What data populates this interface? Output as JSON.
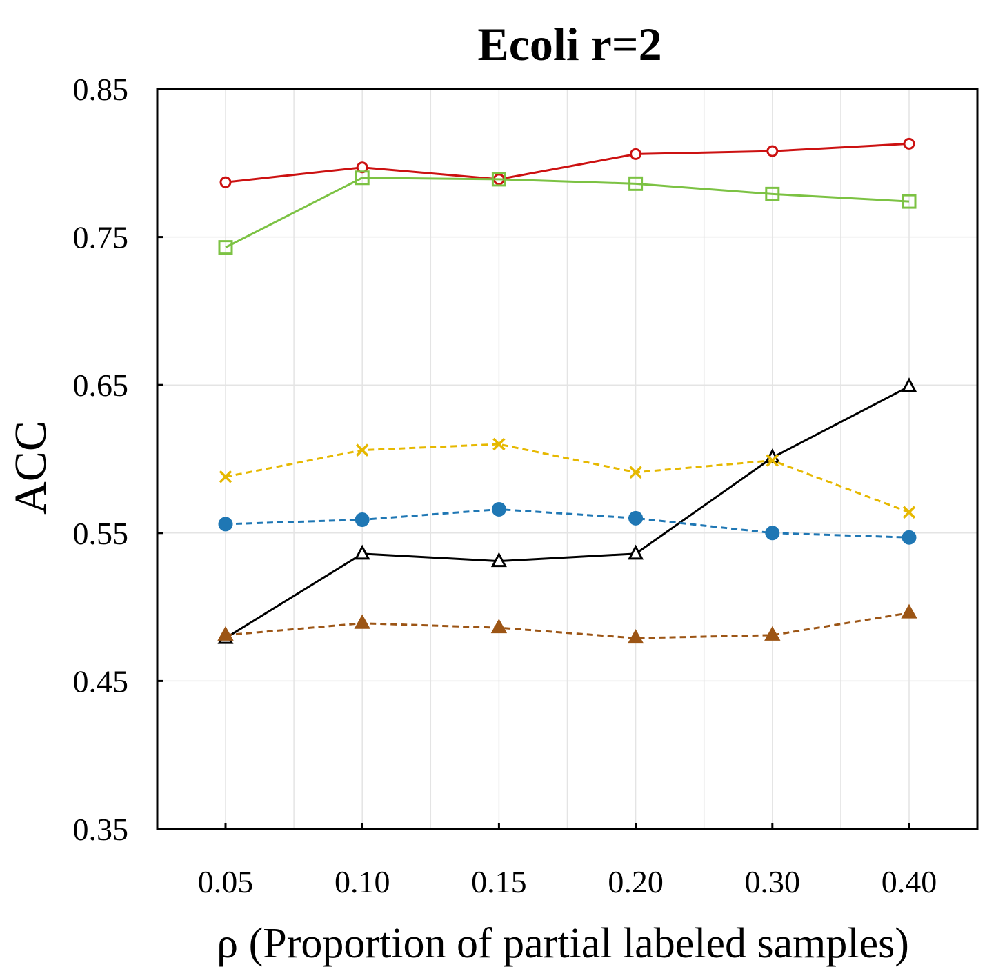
{
  "chart_data": {
    "type": "line",
    "title": "Ecoli r=2",
    "xlabel": "ρ (Proportion of partial labeled samples)",
    "ylabel": "ACC",
    "categories": [
      "0.05",
      "0.10",
      "0.15",
      "0.20",
      "0.30",
      "0.40"
    ],
    "ylim": [
      0.35,
      0.85
    ],
    "yticks": [
      "0.35",
      "0.45",
      "0.55",
      "0.65",
      "0.75",
      "0.85"
    ],
    "grid": true,
    "legend": "none",
    "series": [
      {
        "values": [
          0.787,
          0.797,
          0.789,
          0.806,
          0.808,
          0.813
        ],
        "color": "#cc1111",
        "marker": "circle-open",
        "dash": false
      },
      {
        "values": [
          0.743,
          0.79,
          0.789,
          0.786,
          0.779,
          0.774
        ],
        "color": "#7cc243",
        "marker": "square-open",
        "dash": false
      },
      {
        "values": [
          0.479,
          0.536,
          0.531,
          0.536,
          0.601,
          0.649
        ],
        "color": "#000000",
        "marker": "triangle-open",
        "dash": false
      },
      {
        "values": [
          0.588,
          0.606,
          0.61,
          0.591,
          0.599,
          0.564
        ],
        "color": "#e6b800",
        "marker": "x",
        "dash": true
      },
      {
        "values": [
          0.556,
          0.559,
          0.566,
          0.56,
          0.55,
          0.547
        ],
        "color": "#1f77b4",
        "marker": "circle-filled",
        "dash": true
      },
      {
        "values": [
          0.481,
          0.489,
          0.486,
          0.479,
          0.481,
          0.496
        ],
        "color": "#9c5515",
        "marker": "triangle-filled",
        "dash": true
      }
    ]
  }
}
